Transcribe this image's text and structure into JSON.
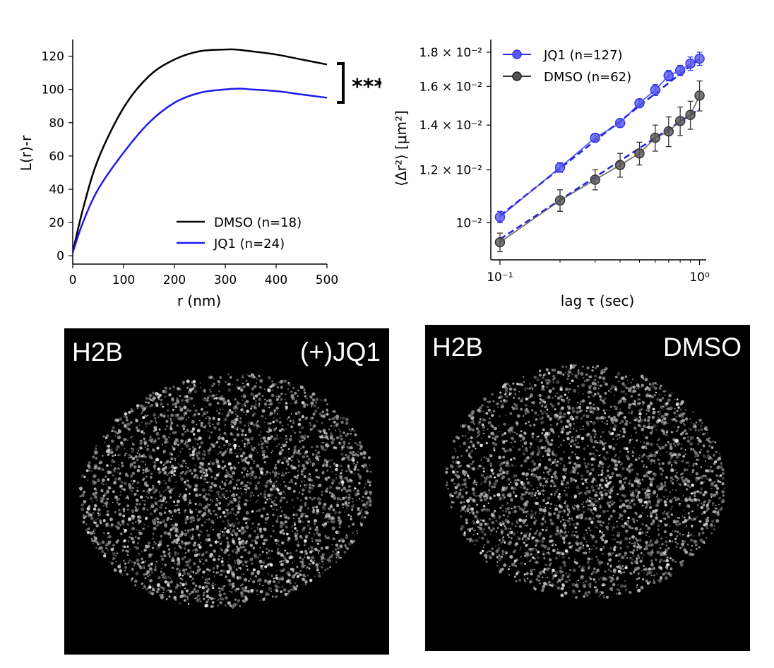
{
  "chart_data": [
    {
      "type": "line",
      "xlabel": "r (nm)",
      "ylabel": "L(r)-r",
      "xlim": [
        0,
        500
      ],
      "ylim": [
        -5,
        130
      ],
      "xticks": [
        "0",
        "100",
        "200",
        "300",
        "400",
        "500"
      ],
      "yticks": [
        "0",
        "20",
        "40",
        "60",
        "80",
        "100",
        "120"
      ],
      "legend_position": "lower-right",
      "grid": false,
      "series": [
        {
          "name": "DMSO (n=18)",
          "color": "#000000",
          "x": [
            0,
            20,
            50,
            100,
            150,
            200,
            250,
            300,
            320,
            350,
            400,
            450,
            500
          ],
          "values": [
            2,
            28,
            58,
            89,
            108,
            118,
            123,
            124,
            124,
            123,
            121,
            118,
            115
          ]
        },
        {
          "name": "JQ1 (n=24)",
          "color": "#1a1aee",
          "x": [
            0,
            20,
            50,
            100,
            150,
            200,
            250,
            300,
            330,
            350,
            400,
            450,
            500
          ],
          "values": [
            2,
            20,
            40,
            62,
            80,
            92,
            98,
            100,
            100.5,
            100,
            99,
            97,
            95
          ]
        }
      ],
      "annotation": "***"
    },
    {
      "type": "line",
      "xlabel": "lag τ (sec)",
      "ylabel": "⟨Δr²⟩ [μm²]",
      "x_scale": "log",
      "y_scale": "log",
      "xlim": [
        0.09,
        1.08
      ],
      "ylim": [
        0.0088,
        0.0188
      ],
      "legend_position": "top-left",
      "grid": false,
      "yticks": [
        "10⁻²",
        "1.2 × 10⁻²",
        "1.4 × 10⁻²",
        "1.6 × 10⁻²",
        "1.8 × 10⁻²"
      ],
      "xticks": [
        "10⁻¹",
        "10⁰"
      ],
      "series": [
        {
          "name": "JQ1 (n=127)",
          "color": "#3333ee",
          "x": [
            0.1,
            0.2,
            0.3,
            0.4,
            0.5,
            0.6,
            0.7,
            0.8,
            0.9,
            1.0
          ],
          "values": [
            0.0102,
            0.0121,
            0.0134,
            0.0141,
            0.0151,
            0.0158,
            0.0166,
            0.0169,
            0.0173,
            0.0176
          ],
          "error": [
            0.0002,
            0.0002,
            0.0002,
            0.0002,
            0.0002,
            0.0003,
            0.0003,
            0.0003,
            0.0004,
            0.0004
          ],
          "fit": [
            0.01025,
            0.0176
          ]
        },
        {
          "name": "DMSO (n=62)",
          "color": "#333333",
          "x": [
            0.1,
            0.2,
            0.3,
            0.4,
            0.5,
            0.6,
            0.7,
            0.8,
            0.9,
            1.0
          ],
          "values": [
            0.00935,
            0.0108,
            0.0116,
            0.0122,
            0.0127,
            0.0134,
            0.0137,
            0.0142,
            0.0145,
            0.0155
          ],
          "error": [
            0.0003,
            0.0004,
            0.0004,
            0.0005,
            0.0005,
            0.0006,
            0.0007,
            0.0007,
            0.0007,
            0.0008
          ],
          "fit": [
            0.00945,
            0.0148
          ]
        }
      ]
    }
  ],
  "images": [
    {
      "label_left": "H2B",
      "label_right": "(+)JQ1"
    },
    {
      "label_left": "H2B",
      "label_right": "DMSO"
    }
  ]
}
